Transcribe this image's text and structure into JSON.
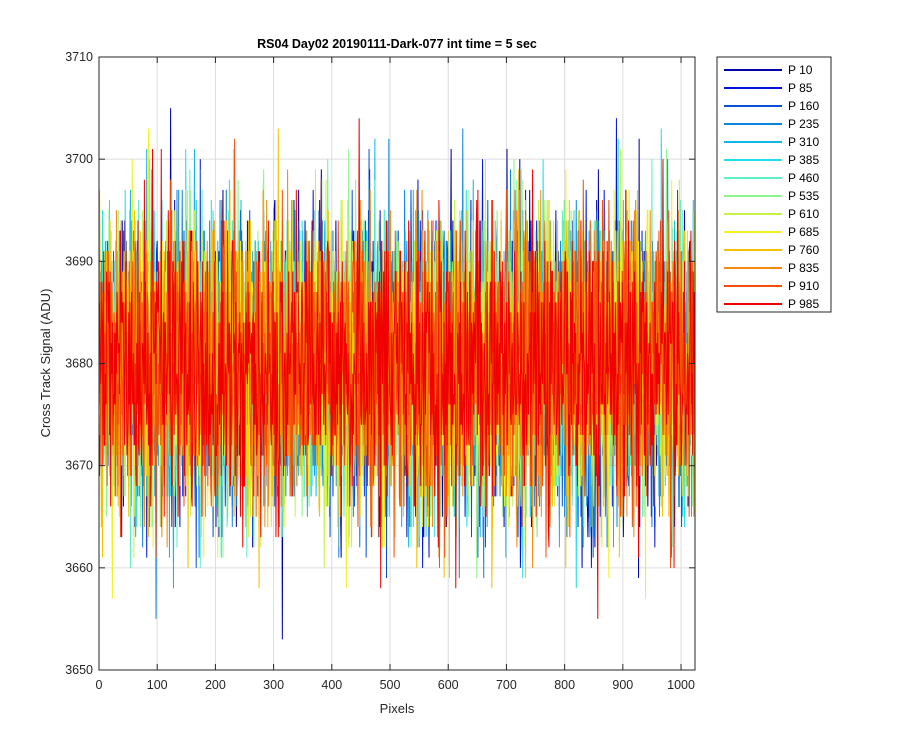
{
  "chart_data": {
    "type": "line",
    "title": "RS04 Day02 20190111-Dark-077 int time = 5 sec",
    "xlabel": "Pixels",
    "ylabel": "Cross Track Signal (ADU)",
    "xlim": [
      0,
      1024
    ],
    "ylim": [
      3650,
      3710
    ],
    "xticks": [
      0,
      100,
      200,
      300,
      400,
      500,
      600,
      700,
      800,
      900,
      1000
    ],
    "yticks": [
      3650,
      3660,
      3670,
      3680,
      3690,
      3700,
      3710
    ],
    "grid": true,
    "legend_position": "outside-top-right",
    "noise": {
      "mean": 3680,
      "sd": 7,
      "min": 3651,
      "max": 3709,
      "pixels": 1024
    },
    "series": [
      {
        "name": "P 10",
        "color": "#0000a8"
      },
      {
        "name": "P 85",
        "color": "#0014d8"
      },
      {
        "name": "P 160",
        "color": "#0a50d6"
      },
      {
        "name": "P 235",
        "color": "#0c86dc"
      },
      {
        "name": "P 310",
        "color": "#12b6e8"
      },
      {
        "name": "P 385",
        "color": "#1fe0e8"
      },
      {
        "name": "P 460",
        "color": "#5ef0c4"
      },
      {
        "name": "P 535",
        "color": "#8cf58c"
      },
      {
        "name": "P 610",
        "color": "#c4f246"
      },
      {
        "name": "P 685",
        "color": "#f4f020"
      },
      {
        "name": "P 760",
        "color": "#f4c000"
      },
      {
        "name": "P 835",
        "color": "#f48a10"
      },
      {
        "name": "P 910",
        "color": "#f44e0a"
      },
      {
        "name": "P 985",
        "color": "#f00000"
      }
    ]
  }
}
